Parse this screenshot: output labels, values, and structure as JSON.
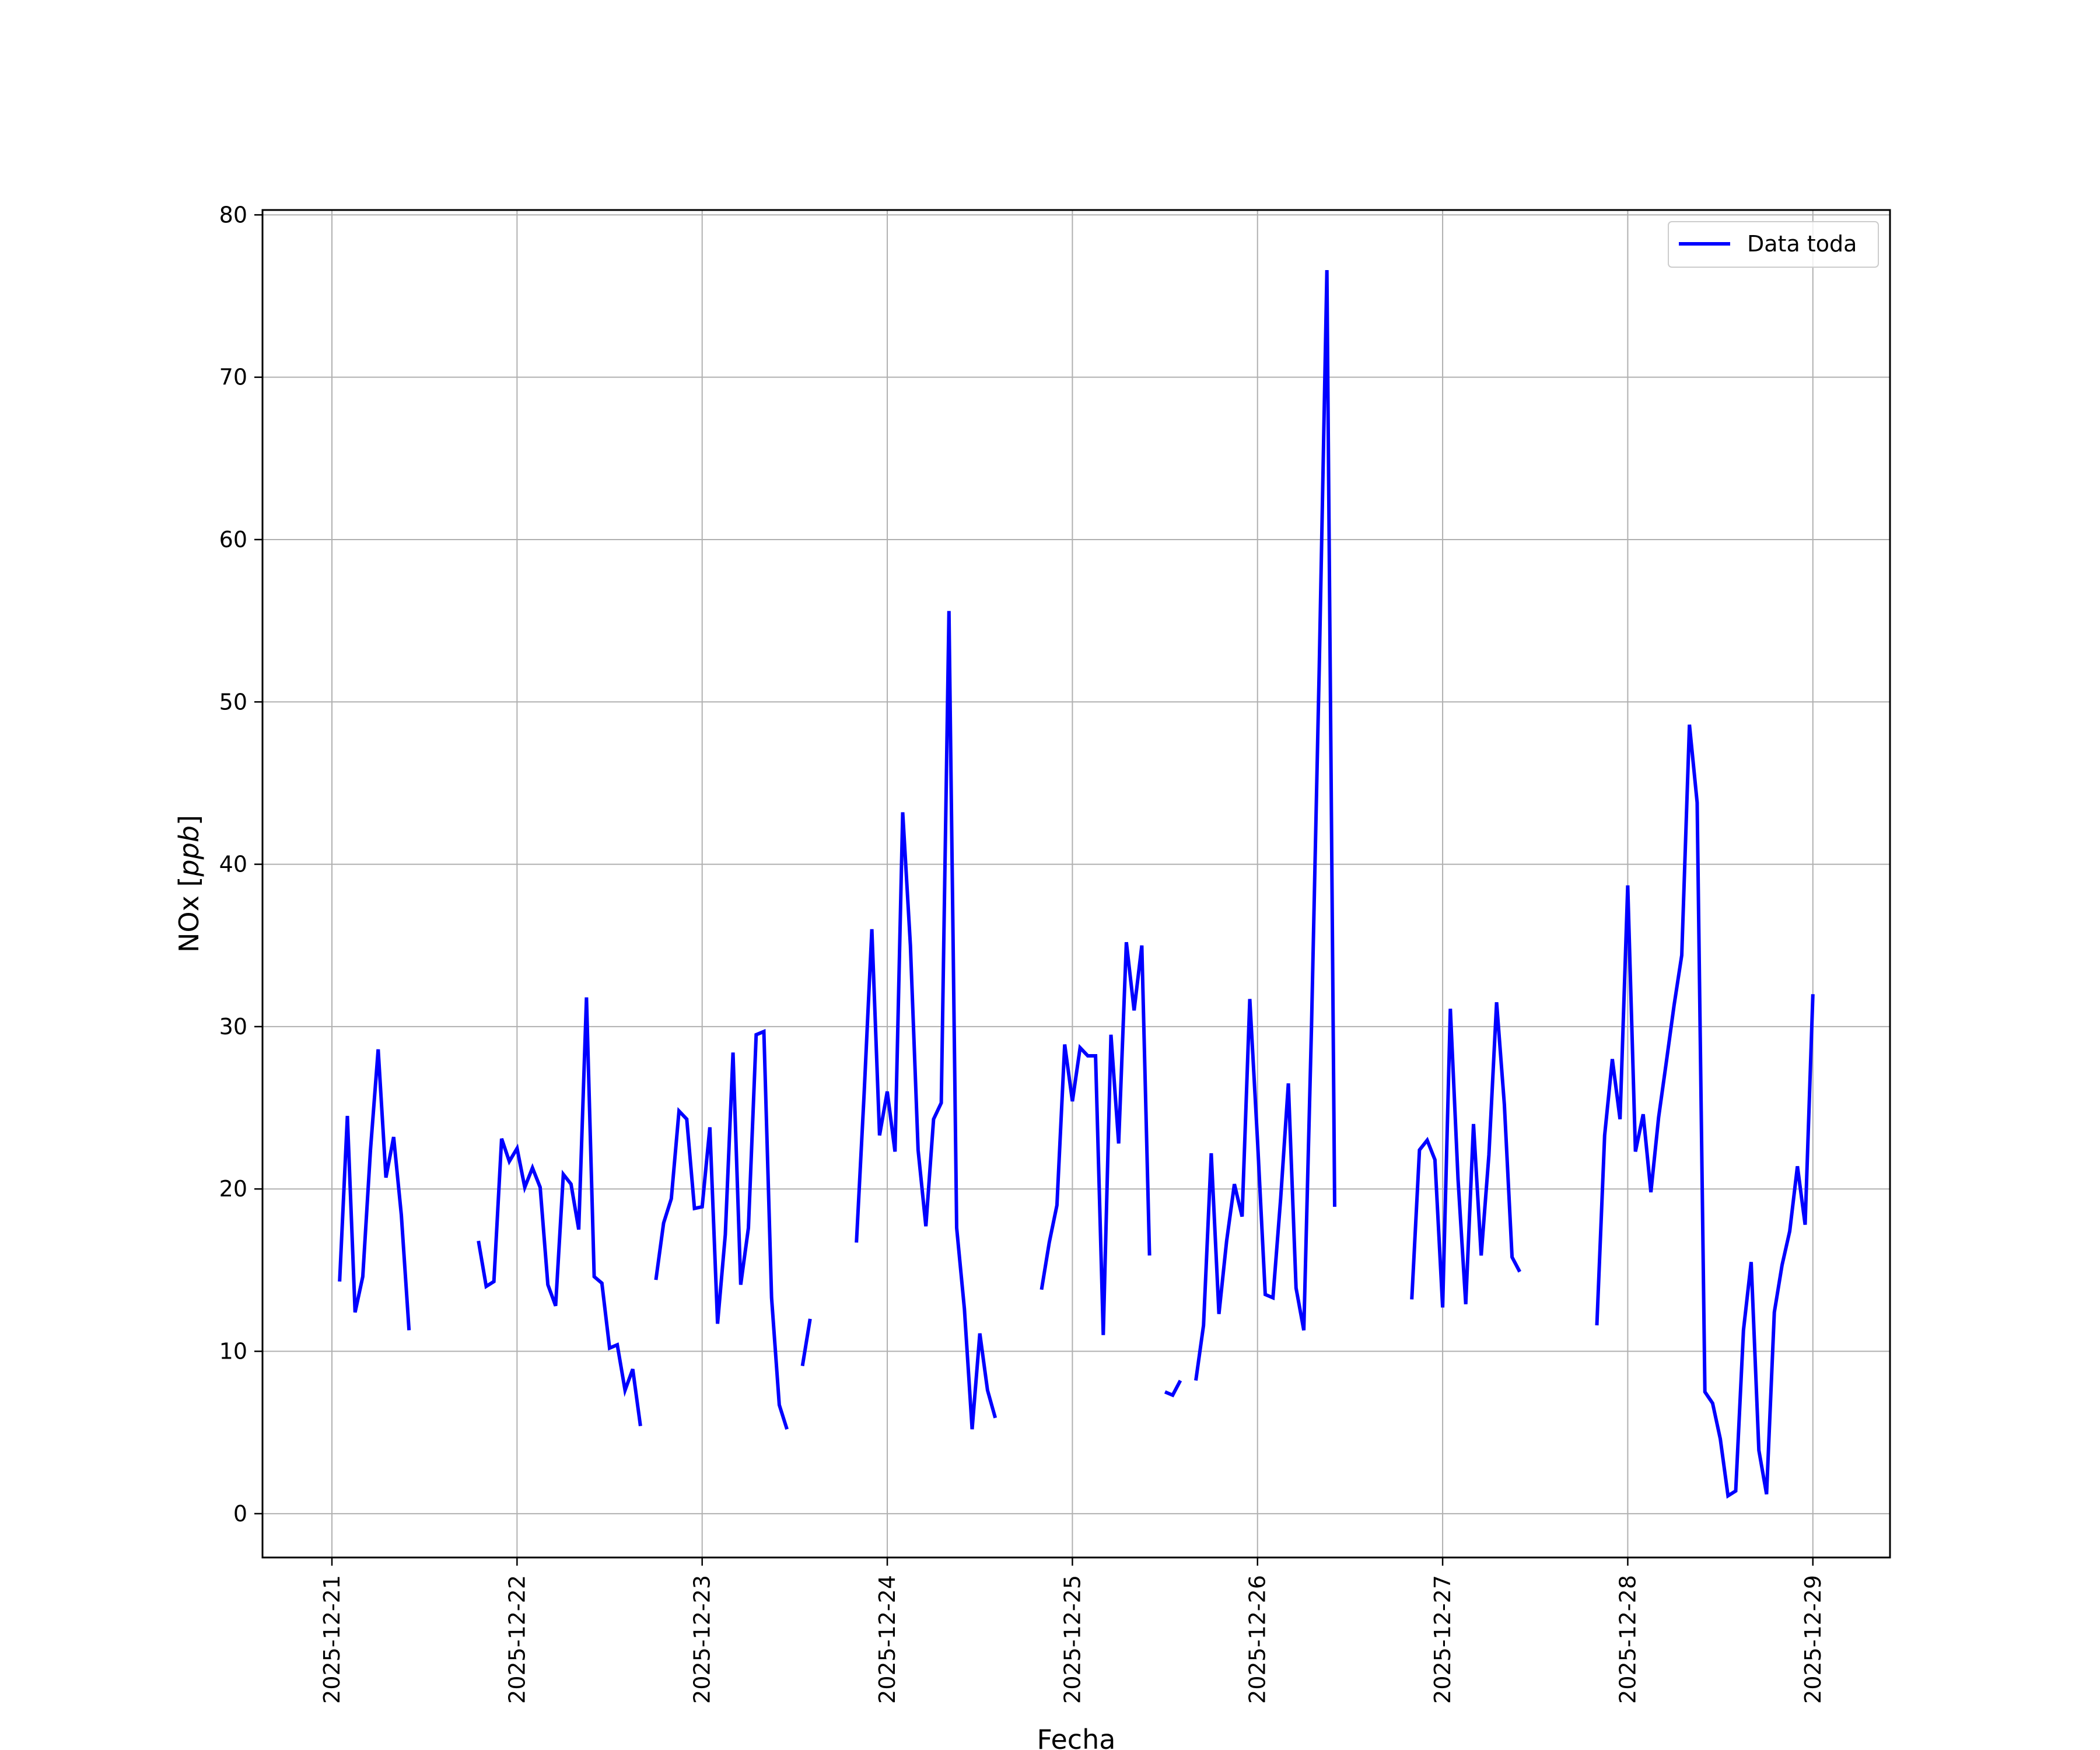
{
  "chart_data": {
    "type": "line",
    "xlabel": "Fecha",
    "ylabel_plain": "NOx [",
    "ylabel_italic": "ppb",
    "ylabel_close": "]",
    "x_axis": "date",
    "xlim": [
      "2025-12-20T15:00",
      "2025-12-29T10:00"
    ],
    "ylim": [
      -2.7,
      80.3
    ],
    "x_ticks": [
      "2025-12-21",
      "2025-12-22",
      "2025-12-23",
      "2025-12-24",
      "2025-12-25",
      "2025-12-26",
      "2025-12-27",
      "2025-12-28",
      "2025-12-29"
    ],
    "y_ticks": [
      0,
      10,
      20,
      30,
      40,
      50,
      60,
      70,
      80
    ],
    "grid": true,
    "legend_position": "top-right",
    "series": [
      {
        "name": "Data toda",
        "color": "#0000ff",
        "segments": [
          [
            [
              "2025-12-21T01:00",
              14.3
            ],
            [
              "2025-12-21T02:00",
              24.5
            ],
            [
              "2025-12-21T03:00",
              12.4
            ],
            [
              "2025-12-21T04:00",
              14.6
            ],
            [
              "2025-12-21T05:00",
              22.4
            ],
            [
              "2025-12-21T06:00",
              28.6
            ],
            [
              "2025-12-21T07:00",
              20.7
            ],
            [
              "2025-12-21T08:00",
              23.2
            ],
            [
              "2025-12-21T09:00",
              18.4
            ],
            [
              "2025-12-21T10:00",
              11.3
            ]
          ],
          [
            [
              "2025-12-21T19:00",
              16.8
            ],
            [
              "2025-12-21T20:00",
              14.0
            ],
            [
              "2025-12-21T21:00",
              14.3
            ],
            [
              "2025-12-21T22:00",
              23.1
            ],
            [
              "2025-12-21T23:00",
              21.7
            ],
            [
              "2025-12-22T00:00",
              22.5
            ],
            [
              "2025-12-22T01:00",
              20.1
            ],
            [
              "2025-12-22T02:00",
              21.3
            ],
            [
              "2025-12-22T03:00",
              20.1
            ],
            [
              "2025-12-22T04:00",
              14.1
            ],
            [
              "2025-12-22T05:00",
              12.8
            ],
            [
              "2025-12-22T06:00",
              20.9
            ],
            [
              "2025-12-22T07:00",
              20.3
            ],
            [
              "2025-12-22T08:00",
              17.5
            ],
            [
              "2025-12-22T09:00",
              31.8
            ],
            [
              "2025-12-22T10:00",
              14.6
            ],
            [
              "2025-12-22T11:00",
              14.2
            ],
            [
              "2025-12-22T12:00",
              10.2
            ],
            [
              "2025-12-22T13:00",
              10.4
            ],
            [
              "2025-12-22T14:00",
              7.6
            ],
            [
              "2025-12-22T15:00",
              8.9
            ],
            [
              "2025-12-22T16:00",
              5.4
            ]
          ],
          [
            [
              "2025-12-22T18:00",
              14.4
            ],
            [
              "2025-12-22T19:00",
              17.9
            ],
            [
              "2025-12-22T20:00",
              19.4
            ],
            [
              "2025-12-22T21:00",
              24.8
            ],
            [
              "2025-12-22T22:00",
              24.3
            ],
            [
              "2025-12-22T23:00",
              18.8
            ],
            [
              "2025-12-23T00:00",
              18.9
            ],
            [
              "2025-12-23T01:00",
              23.8
            ],
            [
              "2025-12-23T02:00",
              11.7
            ],
            [
              "2025-12-23T03:00",
              17.2
            ],
            [
              "2025-12-23T04:00",
              28.4
            ],
            [
              "2025-12-23T05:00",
              14.1
            ],
            [
              "2025-12-23T06:00",
              17.6
            ],
            [
              "2025-12-23T07:00",
              29.5
            ],
            [
              "2025-12-23T08:00",
              29.7
            ],
            [
              "2025-12-23T09:00",
              13.3
            ],
            [
              "2025-12-23T10:00",
              6.7
            ],
            [
              "2025-12-23T11:00",
              5.2
            ]
          ],
          [
            [
              "2025-12-23T13:00",
              9.1
            ],
            [
              "2025-12-23T14:00",
              12.0
            ]
          ],
          [
            [
              "2025-12-23T20:00",
              16.7
            ],
            [
              "2025-12-23T21:00",
              25.9
            ],
            [
              "2025-12-23T22:00",
              36.0
            ],
            [
              "2025-12-23T23:00",
              23.3
            ],
            [
              "2025-12-24T00:00",
              26.0
            ],
            [
              "2025-12-24T01:00",
              22.3
            ],
            [
              "2025-12-24T02:00",
              43.2
            ],
            [
              "2025-12-24T03:00",
              35.0
            ],
            [
              "2025-12-24T04:00",
              22.4
            ],
            [
              "2025-12-24T05:00",
              17.7
            ],
            [
              "2025-12-24T06:00",
              24.3
            ],
            [
              "2025-12-24T07:00",
              25.3
            ],
            [
              "2025-12-24T08:00",
              55.6
            ],
            [
              "2025-12-24T09:00",
              17.6
            ],
            [
              "2025-12-24T10:00",
              12.6
            ],
            [
              "2025-12-24T11:00",
              5.2
            ],
            [
              "2025-12-24T12:00",
              11.1
            ],
            [
              "2025-12-24T13:00",
              7.6
            ],
            [
              "2025-12-24T14:00",
              5.9
            ]
          ],
          [
            [
              "2025-12-24T20:00",
              13.8
            ],
            [
              "2025-12-24T21:00",
              16.7
            ],
            [
              "2025-12-24T22:00",
              19.0
            ],
            [
              "2025-12-24T23:00",
              28.9
            ],
            [
              "2025-12-25T00:00",
              25.4
            ],
            [
              "2025-12-25T01:00",
              28.7
            ],
            [
              "2025-12-25T02:00",
              28.2
            ],
            [
              "2025-12-25T03:00",
              28.2
            ],
            [
              "2025-12-25T04:00",
              11.0
            ],
            [
              "2025-12-25T05:00",
              29.5
            ],
            [
              "2025-12-25T06:00",
              22.8
            ],
            [
              "2025-12-25T07:00",
              35.2
            ],
            [
              "2025-12-25T08:00",
              31.0
            ],
            [
              "2025-12-25T09:00",
              35.0
            ],
            [
              "2025-12-25T10:00",
              15.9
            ]
          ],
          [
            [
              "2025-12-25T12:00",
              7.5
            ],
            [
              "2025-12-25T13:00",
              7.3
            ],
            [
              "2025-12-25T14:00",
              8.2
            ]
          ],
          [
            [
              "2025-12-25T16:00",
              8.2
            ],
            [
              "2025-12-25T17:00",
              11.6
            ],
            [
              "2025-12-25T18:00",
              22.2
            ],
            [
              "2025-12-25T19:00",
              12.3
            ],
            [
              "2025-12-25T20:00",
              16.8
            ],
            [
              "2025-12-25T21:00",
              20.3
            ],
            [
              "2025-12-25T22:00",
              18.3
            ],
            [
              "2025-12-25T23:00",
              31.7
            ],
            [
              "2025-12-26T00:00",
              23.0
            ],
            [
              "2025-12-26T01:00",
              13.5
            ],
            [
              "2025-12-26T02:00",
              13.3
            ],
            [
              "2025-12-26T03:00",
              19.4
            ],
            [
              "2025-12-26T04:00",
              26.5
            ],
            [
              "2025-12-26T05:00",
              13.9
            ],
            [
              "2025-12-26T06:00",
              11.3
            ],
            [
              "2025-12-26T07:00",
              30.0
            ],
            [
              "2025-12-26T08:00",
              52.0
            ],
            [
              "2025-12-26T09:00",
              76.6
            ],
            [
              "2025-12-26T10:00",
              18.9
            ]
          ],
          [
            [
              "2025-12-26T20:00",
              13.2
            ],
            [
              "2025-12-26T21:00",
              22.4
            ],
            [
              "2025-12-26T22:00",
              23.0
            ],
            [
              "2025-12-26T23:00",
              21.8
            ],
            [
              "2025-12-27T00:00",
              12.7
            ],
            [
              "2025-12-27T01:00",
              31.1
            ],
            [
              "2025-12-27T02:00",
              20.6
            ],
            [
              "2025-12-27T03:00",
              12.9
            ],
            [
              "2025-12-27T04:00",
              24.0
            ],
            [
              "2025-12-27T05:00",
              15.9
            ],
            [
              "2025-12-27T06:00",
              22.1
            ],
            [
              "2025-12-27T07:00",
              31.5
            ],
            [
              "2025-12-27T08:00",
              25.2
            ],
            [
              "2025-12-27T09:00",
              15.8
            ],
            [
              "2025-12-27T10:00",
              14.9
            ]
          ],
          [
            [
              "2025-12-27T20:00",
              11.6
            ],
            [
              "2025-12-27T21:00",
              23.3
            ],
            [
              "2025-12-27T22:00",
              28.0
            ],
            [
              "2025-12-27T23:00",
              24.3
            ],
            [
              "2025-12-28T00:00",
              38.7
            ],
            [
              "2025-12-28T01:00",
              22.3
            ],
            [
              "2025-12-28T02:00",
              24.6
            ],
            [
              "2025-12-28T03:00",
              19.8
            ],
            [
              "2025-12-28T04:00",
              24.4
            ],
            [
              "2025-12-28T05:00",
              27.8
            ],
            [
              "2025-12-28T06:00",
              31.3
            ],
            [
              "2025-12-28T07:00",
              34.4
            ],
            [
              "2025-12-28T08:00",
              48.6
            ],
            [
              "2025-12-28T09:00",
              43.8
            ],
            [
              "2025-12-28T10:00",
              7.5
            ],
            [
              "2025-12-28T11:00",
              6.8
            ],
            [
              "2025-12-28T12:00",
              4.6
            ],
            [
              "2025-12-28T13:00",
              1.1
            ],
            [
              "2025-12-28T14:00",
              1.4
            ],
            [
              "2025-12-28T15:00",
              11.3
            ],
            [
              "2025-12-28T16:00",
              15.5
            ],
            [
              "2025-12-28T17:00",
              3.9
            ],
            [
              "2025-12-28T18:00",
              1.2
            ],
            [
              "2025-12-28T19:00",
              12.4
            ],
            [
              "2025-12-28T20:00",
              15.3
            ],
            [
              "2025-12-28T21:00",
              17.4
            ],
            [
              "2025-12-28T22:00",
              21.4
            ],
            [
              "2025-12-28T23:00",
              17.8
            ],
            [
              "2025-12-29T00:00",
              32.0
            ]
          ]
        ]
      }
    ]
  }
}
